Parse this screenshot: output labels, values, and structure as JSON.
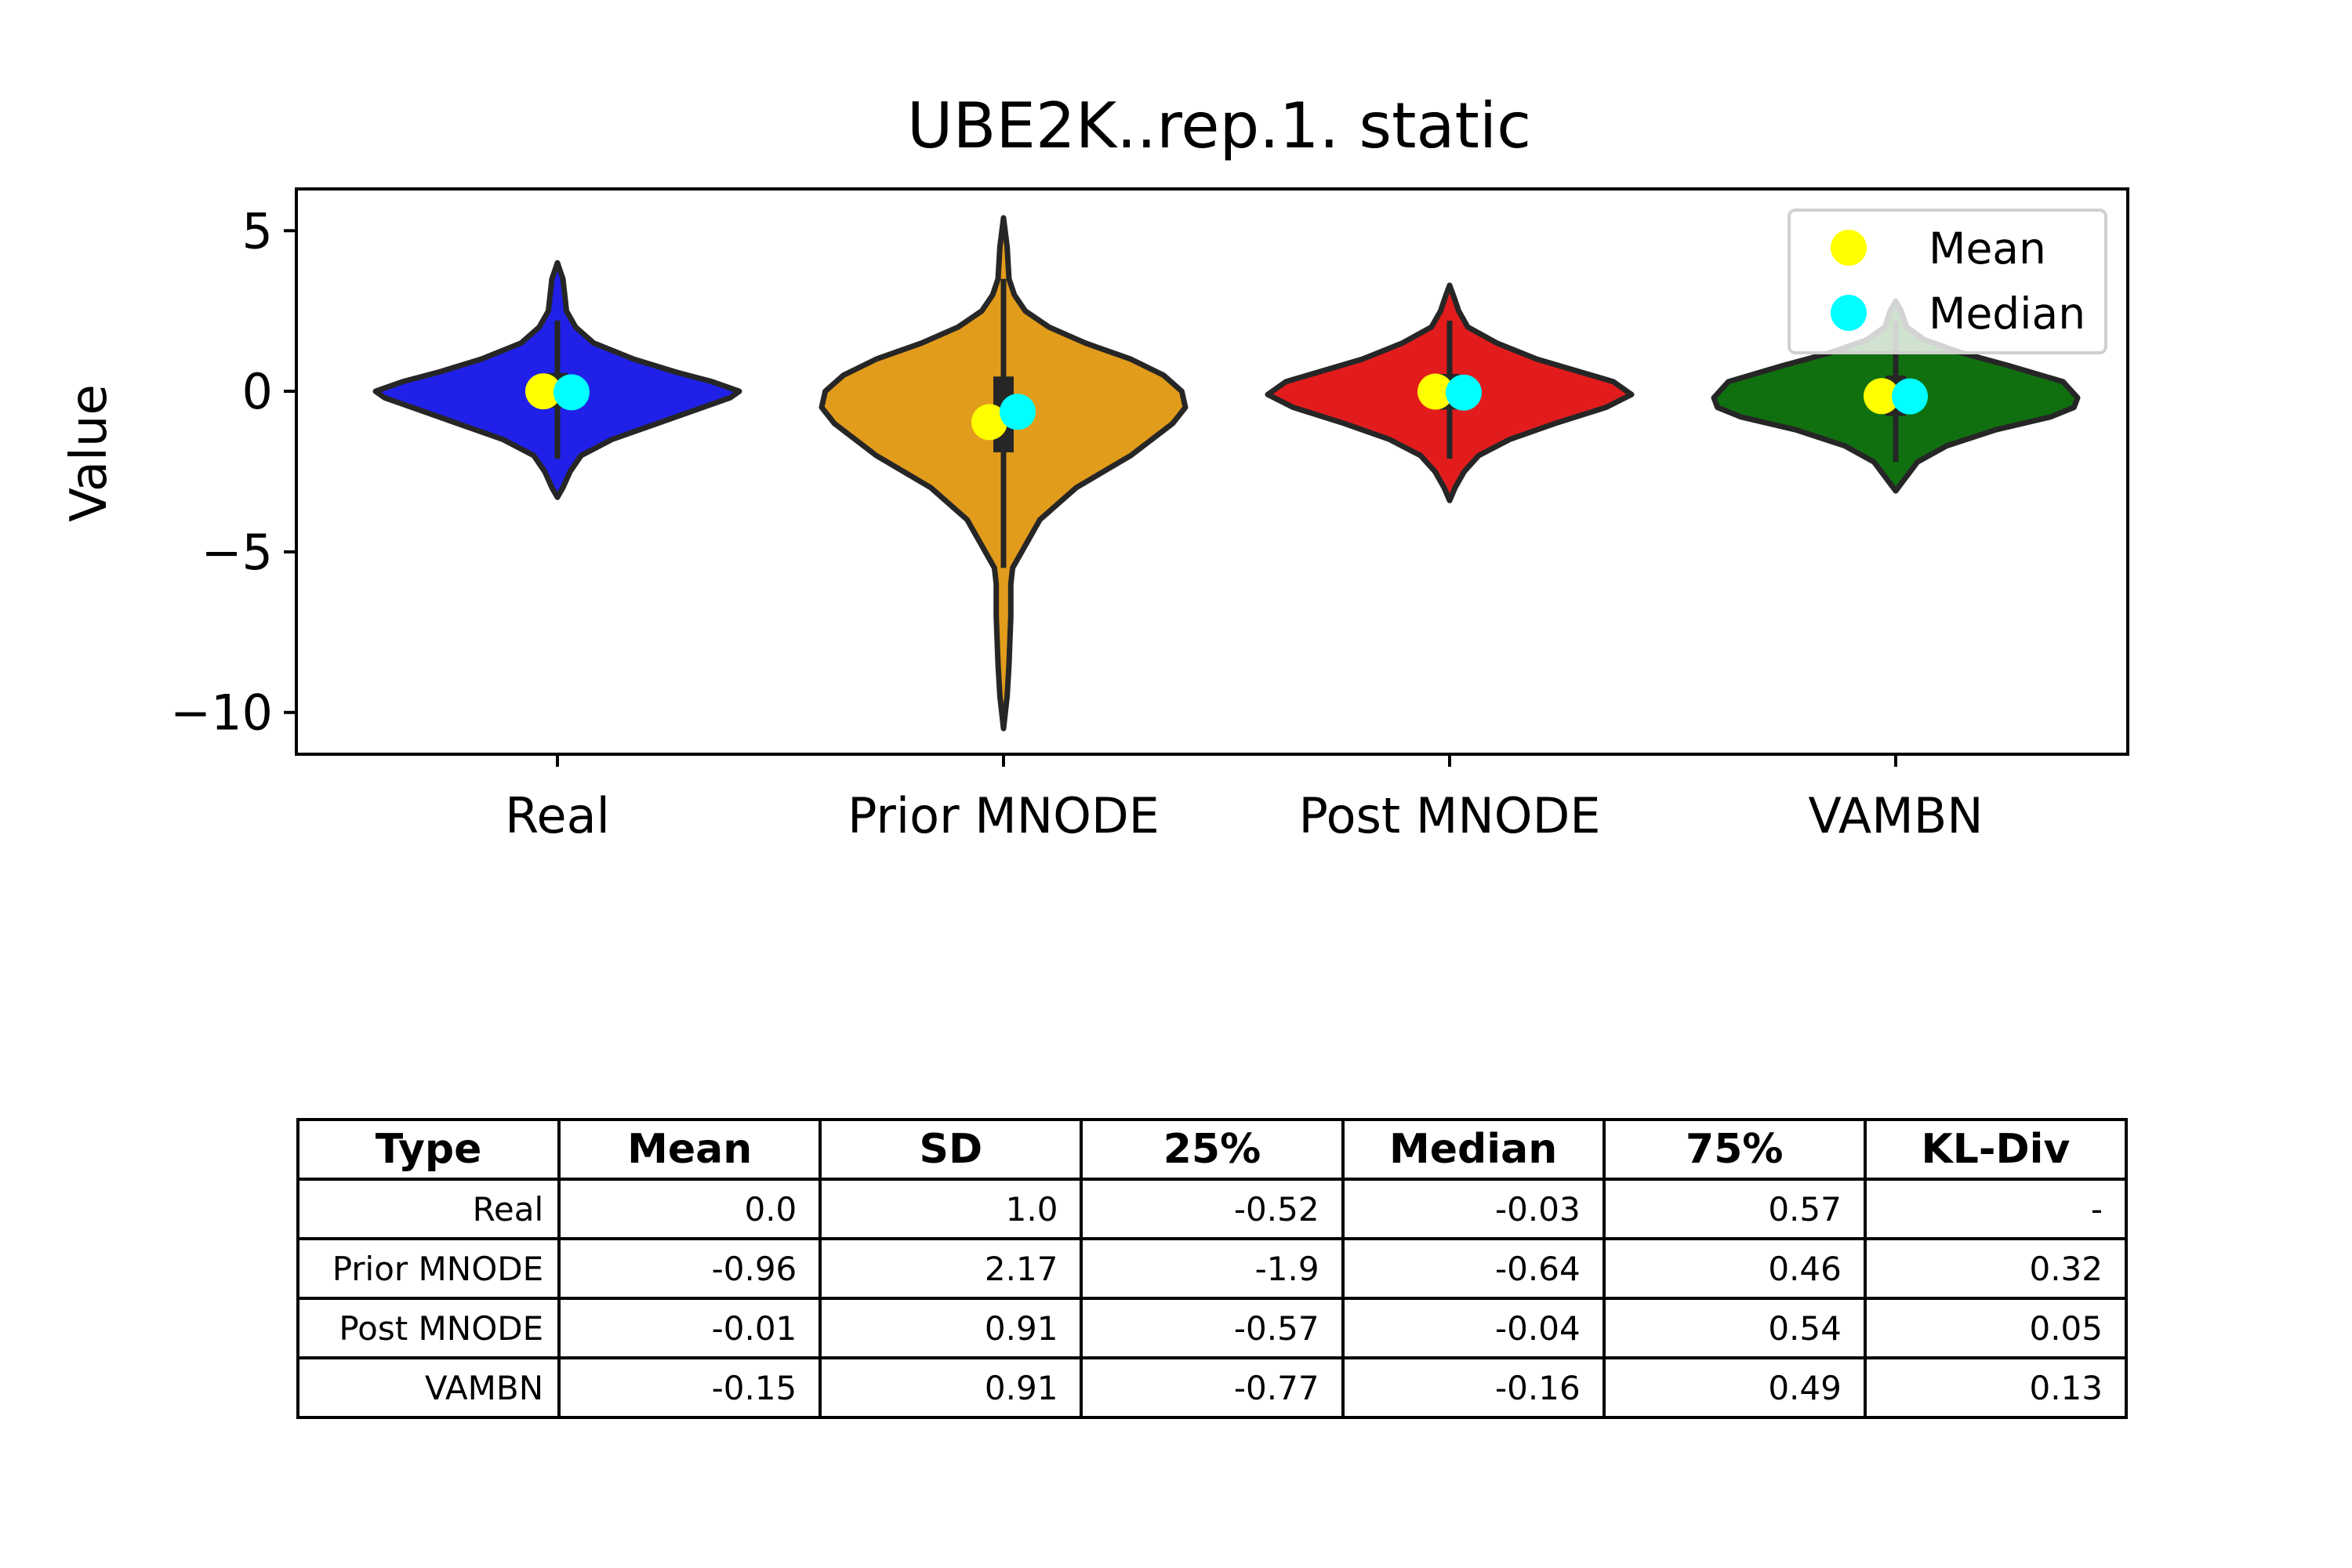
{
  "chart_data": {
    "type": "violin",
    "title": "UBE2K..rep.1. static",
    "ylabel": "Value",
    "ylim": [
      -11.3,
      6.3
    ],
    "yticks": [
      5,
      0,
      -5,
      -10
    ],
    "ytick_labels": [
      "5",
      "0",
      "−5",
      "−10"
    ],
    "categories": [
      "Real",
      "Prior MNODE",
      "Post MNODE",
      "VAMBN"
    ],
    "legend": {
      "position": "top-right",
      "entries": [
        "Mean",
        "Median"
      ]
    },
    "marker_colors": {
      "mean": "#ffff00",
      "median": "#00ffff"
    },
    "series": [
      {
        "label": "Real",
        "color": "#2020e8",
        "min": -3.3,
        "max": 4.0,
        "q1": -0.52,
        "median": -0.03,
        "q3": 0.57,
        "mean": 0.0,
        "whisker": [
          -2.1,
          2.2
        ],
        "profile": [
          [
            -3.3,
            0
          ],
          [
            -3.0,
            0.03
          ],
          [
            -2.5,
            0.07
          ],
          [
            -2.0,
            0.13
          ],
          [
            -1.5,
            0.3
          ],
          [
            -1.0,
            0.55
          ],
          [
            -0.5,
            0.8
          ],
          [
            -0.2,
            0.95
          ],
          [
            0.0,
            1.0
          ],
          [
            0.3,
            0.85
          ],
          [
            0.6,
            0.65
          ],
          [
            1.0,
            0.42
          ],
          [
            1.5,
            0.2
          ],
          [
            2.0,
            0.1
          ],
          [
            2.5,
            0.05
          ],
          [
            3.0,
            0.04
          ],
          [
            3.5,
            0.03
          ],
          [
            4.0,
            0
          ]
        ]
      },
      {
        "label": "Prior MNODE",
        "color": "#e29c1c",
        "min": -10.5,
        "max": 5.4,
        "q1": -1.9,
        "median": -0.64,
        "q3": 0.46,
        "mean": -0.96,
        "whisker": [
          -5.5,
          3.5
        ],
        "profile": [
          [
            -10.5,
            0
          ],
          [
            -9.5,
            0.02
          ],
          [
            -8.5,
            0.03
          ],
          [
            -7.0,
            0.04
          ],
          [
            -6.0,
            0.04
          ],
          [
            -5.5,
            0.05
          ],
          [
            -5.0,
            0.1
          ],
          [
            -4.0,
            0.2
          ],
          [
            -3.0,
            0.4
          ],
          [
            -2.0,
            0.7
          ],
          [
            -1.0,
            0.93
          ],
          [
            -0.5,
            1.0
          ],
          [
            0.0,
            0.98
          ],
          [
            0.5,
            0.88
          ],
          [
            1.0,
            0.7
          ],
          [
            1.5,
            0.45
          ],
          [
            2.0,
            0.25
          ],
          [
            2.5,
            0.12
          ],
          [
            3.0,
            0.06
          ],
          [
            3.5,
            0.03
          ],
          [
            4.5,
            0.02
          ],
          [
            5.4,
            0
          ]
        ]
      },
      {
        "label": "Post MNODE",
        "color": "#e21c1c",
        "min": -3.4,
        "max": 3.3,
        "q1": -0.57,
        "median": -0.04,
        "q3": 0.54,
        "mean": -0.01,
        "whisker": [
          -2.1,
          2.2
        ],
        "profile": [
          [
            -3.4,
            0
          ],
          [
            -3.0,
            0.03
          ],
          [
            -2.5,
            0.08
          ],
          [
            -2.0,
            0.16
          ],
          [
            -1.5,
            0.33
          ],
          [
            -1.0,
            0.58
          ],
          [
            -0.5,
            0.86
          ],
          [
            -0.1,
            1.0
          ],
          [
            0.3,
            0.9
          ],
          [
            0.6,
            0.72
          ],
          [
            1.0,
            0.48
          ],
          [
            1.5,
            0.26
          ],
          [
            2.0,
            0.1
          ],
          [
            2.5,
            0.05
          ],
          [
            3.0,
            0.02
          ],
          [
            3.3,
            0
          ]
        ]
      },
      {
        "label": "VAMBN",
        "color": "#107010",
        "min": -3.1,
        "max": 2.8,
        "q1": -0.77,
        "median": -0.16,
        "q3": 0.49,
        "mean": -0.15,
        "whisker": [
          -2.2,
          2.2
        ],
        "profile": [
          [
            -3.1,
            0
          ],
          [
            -2.8,
            0.04
          ],
          [
            -2.2,
            0.12
          ],
          [
            -1.7,
            0.28
          ],
          [
            -1.2,
            0.55
          ],
          [
            -0.8,
            0.85
          ],
          [
            -0.5,
            0.98
          ],
          [
            -0.2,
            1.0
          ],
          [
            0.3,
            0.92
          ],
          [
            0.8,
            0.62
          ],
          [
            1.2,
            0.36
          ],
          [
            1.6,
            0.16
          ],
          [
            2.0,
            0.06
          ],
          [
            2.5,
            0.03
          ],
          [
            2.8,
            0
          ]
        ]
      }
    ]
  },
  "table": {
    "columns": [
      "Type",
      "Mean",
      "SD",
      "25%",
      "Median",
      "75%",
      "KL-Div"
    ],
    "rows": [
      [
        "Real",
        "0.0",
        "1.0",
        "-0.52",
        "-0.03",
        "0.57",
        "-"
      ],
      [
        "Prior MNODE",
        "-0.96",
        "2.17",
        "-1.9",
        "-0.64",
        "0.46",
        "0.32"
      ],
      [
        "Post MNODE",
        "-0.01",
        "0.91",
        "-0.57",
        "-0.04",
        "0.54",
        "0.05"
      ],
      [
        "VAMBN",
        "-0.15",
        "0.91",
        "-0.77",
        "-0.16",
        "0.49",
        "0.13"
      ]
    ]
  }
}
